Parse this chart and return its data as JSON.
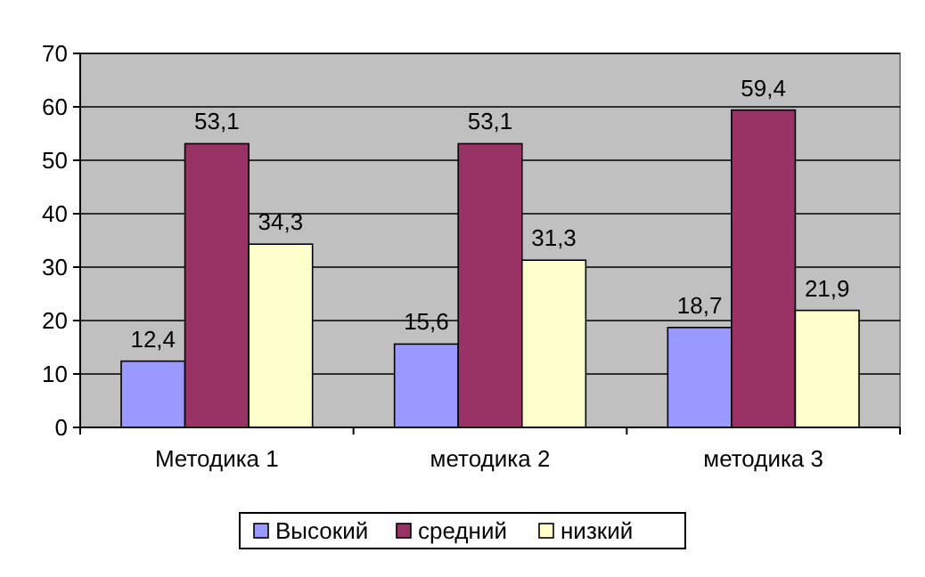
{
  "chart_data": {
    "type": "bar",
    "categories": [
      "Методика 1",
      "методика 2",
      "методика 3"
    ],
    "series": [
      {
        "name": "Высокий",
        "color": "#9999ff",
        "values": [
          12.4,
          15.6,
          18.7
        ],
        "value_labels": [
          "12,4",
          "15,6",
          "18,7"
        ]
      },
      {
        "name": "средний",
        "color": "#993366",
        "values": [
          53.1,
          53.1,
          59.4
        ],
        "value_labels": [
          "53,1",
          "53,1",
          "59,4"
        ]
      },
      {
        "name": "низкий",
        "color": "#ffffcc",
        "values": [
          34.3,
          31.3,
          21.9
        ],
        "value_labels": [
          "34,3",
          "31,3",
          "21,9"
        ]
      }
    ],
    "ylim": [
      0,
      70
    ],
    "yticks": [
      0,
      10,
      20,
      30,
      40,
      50,
      60,
      70
    ],
    "grid": "y",
    "legend": "bottom"
  }
}
